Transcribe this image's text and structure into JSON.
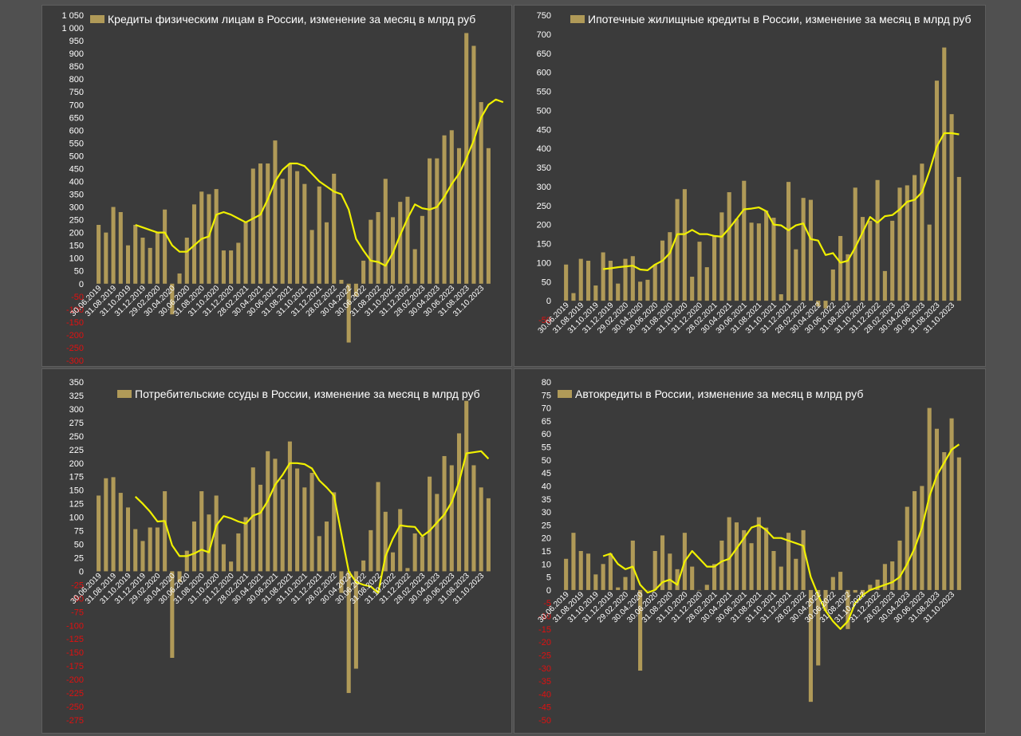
{
  "colors": {
    "bar": "#b09a58",
    "line": "#f0f000",
    "tick": "#ffffff",
    "negative_tick": "#e01010",
    "panel": "#3b3b3b",
    "outer": "#505050"
  },
  "chart_data": [
    {
      "type": "bar",
      "title": "Кредиты физическим лицам  в России, изменение за месяц в млрд руб",
      "yticks": [
        -300,
        -250,
        -200,
        -150,
        -100,
        -50,
        0,
        50,
        100,
        150,
        200,
        250,
        300,
        350,
        400,
        450,
        500,
        550,
        600,
        650,
        700,
        750,
        800,
        850,
        900,
        950,
        1000,
        1050
      ],
      "ytick_labels": [
        "-300",
        "-250",
        "-200",
        "-150",
        "-100",
        "-50",
        "0",
        "50",
        "100",
        "150",
        "200",
        "250",
        "300",
        "350",
        "400",
        "450",
        "500",
        "550",
        "600",
        "650",
        "700",
        "750",
        "800",
        "850",
        "900",
        "950",
        "1 000",
        "1 050"
      ],
      "ylim": [
        -300,
        1050
      ],
      "xtick_labels": [
        "30.06.2019",
        "31.08.2019",
        "31.10.2019",
        "31.12.2019",
        "29.02.2020",
        "30.04.2020",
        "30.06.2020",
        "31.08.2020",
        "31.10.2020",
        "31.12.2020",
        "28.02.2021",
        "30.04.2021",
        "30.06.2021",
        "31.08.2021",
        "31.10.2021",
        "31.12.2021",
        "28.02.2022",
        "30.04.2022",
        "30.06.2022",
        "31.08.2022",
        "31.10.2022",
        "31.12.2022",
        "28.02.2023",
        "30.04.2023",
        "30.06.2023",
        "31.08.2023",
        "31.10.2023"
      ],
      "values": [
        230,
        200,
        300,
        280,
        150,
        230,
        180,
        140,
        200,
        290,
        -120,
        40,
        180,
        310,
        360,
        350,
        370,
        130,
        130,
        160,
        240,
        450,
        470,
        470,
        560,
        410,
        470,
        440,
        390,
        210,
        380,
        240,
        430,
        15,
        -230,
        -50,
        90,
        250,
        280,
        410,
        260,
        320,
        340,
        135,
        265,
        490,
        490,
        580,
        600,
        530,
        980,
        930,
        710,
        530
      ],
      "trend": [
        null,
        null,
        null,
        null,
        null,
        230,
        220,
        210,
        200,
        200,
        150,
        125,
        125,
        150,
        175,
        185,
        270,
        280,
        270,
        255,
        240,
        255,
        270,
        330,
        400,
        445,
        470,
        470,
        460,
        430,
        400,
        380,
        360,
        350,
        290,
        175,
        130,
        90,
        85,
        70,
        120,
        190,
        255,
        310,
        295,
        290,
        300,
        340,
        390,
        430,
        490,
        560,
        650,
        700,
        720,
        710
      ]
    },
    {
      "type": "bar",
      "title": "Ипотечные жилищные кредиты в России, изменение за месяц в млрд руб",
      "yticks": [
        -50,
        0,
        50,
        100,
        150,
        200,
        250,
        300,
        350,
        400,
        450,
        500,
        550,
        600,
        650,
        700,
        750
      ],
      "ytick_labels": [
        "-50",
        "0",
        "50",
        "100",
        "150",
        "200",
        "250",
        "300",
        "350",
        "400",
        "450",
        "500",
        "550",
        "600",
        "650",
        "700",
        "750"
      ],
      "ylim": [
        -50,
        750
      ],
      "xtick_labels": [
        "30.06.2019",
        "31.08.2019",
        "31.10.2019",
        "31.12.2019",
        "29.02.2020",
        "30.04.2020",
        "30.06.2020",
        "31.08.2020",
        "31.10.2020",
        "31.12.2020",
        "28.02.2021",
        "30.04.2021",
        "30.06.2021",
        "31.08.2021",
        "31.10.2021",
        "31.12.2021",
        "28.02.2022",
        "30.04.2022",
        "30.06.2022",
        "31.08.2022",
        "31.10.2022",
        "31.12.2022",
        "28.02.2023",
        "30.04.2023",
        "30.06.2023",
        "31.08.2023",
        "31.10.2023"
      ],
      "values": [
        95,
        20,
        110,
        105,
        40,
        127,
        105,
        45,
        110,
        117,
        50,
        55,
        95,
        158,
        180,
        267,
        293,
        63,
        155,
        88,
        170,
        232,
        285,
        215,
        315,
        205,
        203,
        237,
        218,
        17,
        312,
        135,
        270,
        265,
        -15,
        -20,
        82,
        170,
        122,
        297,
        220,
        210,
        317,
        78,
        210,
        297,
        303,
        330,
        360,
        200,
        578,
        665,
        490,
        325
      ],
      "trend": [
        null,
        null,
        null,
        null,
        null,
        83,
        85,
        88,
        90,
        92,
        82,
        80,
        95,
        105,
        125,
        175,
        175,
        186,
        175,
        175,
        170,
        168,
        190,
        215,
        240,
        242,
        245,
        235,
        200,
        198,
        185,
        198,
        203,
        162,
        158,
        120,
        125,
        100,
        105,
        140,
        180,
        220,
        205,
        222,
        225,
        240,
        260,
        265,
        285,
        340,
        405,
        440,
        440,
        437
      ]
    },
    {
      "type": "bar",
      "title": "Потребительские ссуды в России, изменение за месяц в млрд руб",
      "yticks": [
        -275,
        -250,
        -225,
        -200,
        -175,
        -150,
        -125,
        -100,
        -75,
        -50,
        -25,
        0,
        25,
        50,
        75,
        100,
        125,
        150,
        175,
        200,
        225,
        250,
        275,
        300,
        325,
        350
      ],
      "ytick_labels": [
        "-275",
        "-250",
        "-225",
        "-200",
        "-175",
        "-150",
        "-125",
        "-100",
        "-75",
        "-50",
        "-25",
        "0",
        "25",
        "50",
        "75",
        "100",
        "125",
        "150",
        "175",
        "200",
        "225",
        "250",
        "275",
        "300",
        "325",
        "350"
      ],
      "ylim": [
        -275,
        350
      ],
      "xtick_labels": [
        "30.06.2019",
        "31.08.2019",
        "31.10.2019",
        "31.12.2019",
        "29.02.2020",
        "30.04.2020",
        "30.06.2020",
        "31.08.2020",
        "31.10.2020",
        "31.12.2020",
        "28.02.2021",
        "30.04.2021",
        "30.06.2021",
        "31.08.2021",
        "31.10.2021",
        "31.12.2021",
        "28.02.2022",
        "30.04.2022",
        "30.06.2022",
        "31.08.2022",
        "31.10.2022",
        "31.12.2022",
        "28.02.2023",
        "30.04.2023",
        "30.06.2023",
        "31.08.2023",
        "31.10.2023"
      ],
      "values": [
        140,
        172,
        174,
        145,
        118,
        78,
        56,
        81,
        81,
        148,
        -160,
        -20,
        38,
        92,
        148,
        105,
        140,
        50,
        18,
        70,
        100,
        192,
        160,
        222,
        208,
        170,
        240,
        190,
        155,
        182,
        65,
        92,
        146,
        -40,
        -225,
        -180,
        20,
        76,
        165,
        110,
        35,
        115,
        6,
        70,
        64,
        175,
        143,
        213,
        196,
        255,
        315,
        196,
        155,
        135
      ],
      "trend": [
        null,
        null,
        null,
        null,
        null,
        138,
        125,
        110,
        92,
        93,
        48,
        28,
        28,
        33,
        40,
        35,
        85,
        102,
        98,
        92,
        88,
        103,
        108,
        130,
        160,
        178,
        200,
        200,
        198,
        190,
        168,
        155,
        140,
        70,
        0,
        -20,
        -25,
        -28,
        -40,
        28,
        60,
        85,
        83,
        82,
        65,
        75,
        90,
        105,
        128,
        165,
        218,
        220,
        222,
        208
      ]
    },
    {
      "type": "bar",
      "title": "Автокредиты в России, изменение за месяц в млрд руб",
      "yticks": [
        -50,
        -45,
        -40,
        -35,
        -30,
        -25,
        -20,
        -15,
        -10,
        -5,
        0,
        5,
        10,
        15,
        20,
        25,
        30,
        35,
        40,
        45,
        50,
        55,
        60,
        65,
        70,
        75,
        80
      ],
      "ytick_labels": [
        "-50",
        "-45",
        "-40",
        "-35",
        "-30",
        "-25",
        "-20",
        "-15",
        "-10",
        "-5",
        "0",
        "5",
        "10",
        "15",
        "20",
        "25",
        "30",
        "35",
        "40",
        "45",
        "50",
        "55",
        "60",
        "65",
        "70",
        "75",
        "80"
      ],
      "ylim": [
        -50,
        80
      ],
      "xtick_labels": [
        "30.06.2019",
        "31.08.2019",
        "31.10.2019",
        "31.12.2019",
        "29.02.2020",
        "30.04.2020",
        "30.06.2020",
        "31.08.2020",
        "31.10.2020",
        "31.12.2020",
        "28.02.2021",
        "30.04.2021",
        "30.06.2021",
        "31.08.2021",
        "31.10.2021",
        "31.12.2021",
        "28.02.2022",
        "30.04.2022",
        "30.06.2022",
        "31.08.2022",
        "31.10.2022",
        "31.12.2022",
        "28.02.2023",
        "30.04.2023",
        "30.06.2023",
        "31.08.2023",
        "31.10.2023"
      ],
      "values": [
        12,
        22,
        15,
        14,
        6,
        10,
        14,
        1,
        5,
        19,
        -31,
        0,
        15,
        21,
        14,
        8,
        22,
        9,
        0,
        2,
        10,
        19,
        28,
        26,
        23,
        18,
        28,
        24,
        15,
        9,
        22,
        12,
        23,
        -43,
        -29,
        -8,
        5,
        7,
        -15,
        -1,
        -2,
        2,
        4,
        10,
        11,
        19,
        32,
        38,
        40,
        70,
        62,
        53,
        66,
        51
      ],
      "trend": [
        null,
        null,
        null,
        null,
        null,
        13,
        14,
        10,
        8,
        9,
        2,
        -1,
        0,
        3,
        4,
        2,
        11,
        15,
        12,
        9,
        9,
        11,
        12,
        16,
        20,
        24,
        25,
        23,
        20,
        20,
        19,
        18,
        17,
        5,
        -2,
        -8,
        -12,
        -15,
        -12,
        -5,
        -2,
        0,
        1,
        2,
        3,
        5,
        10,
        16,
        24,
        36,
        44,
        49,
        54,
        56
      ]
    }
  ]
}
